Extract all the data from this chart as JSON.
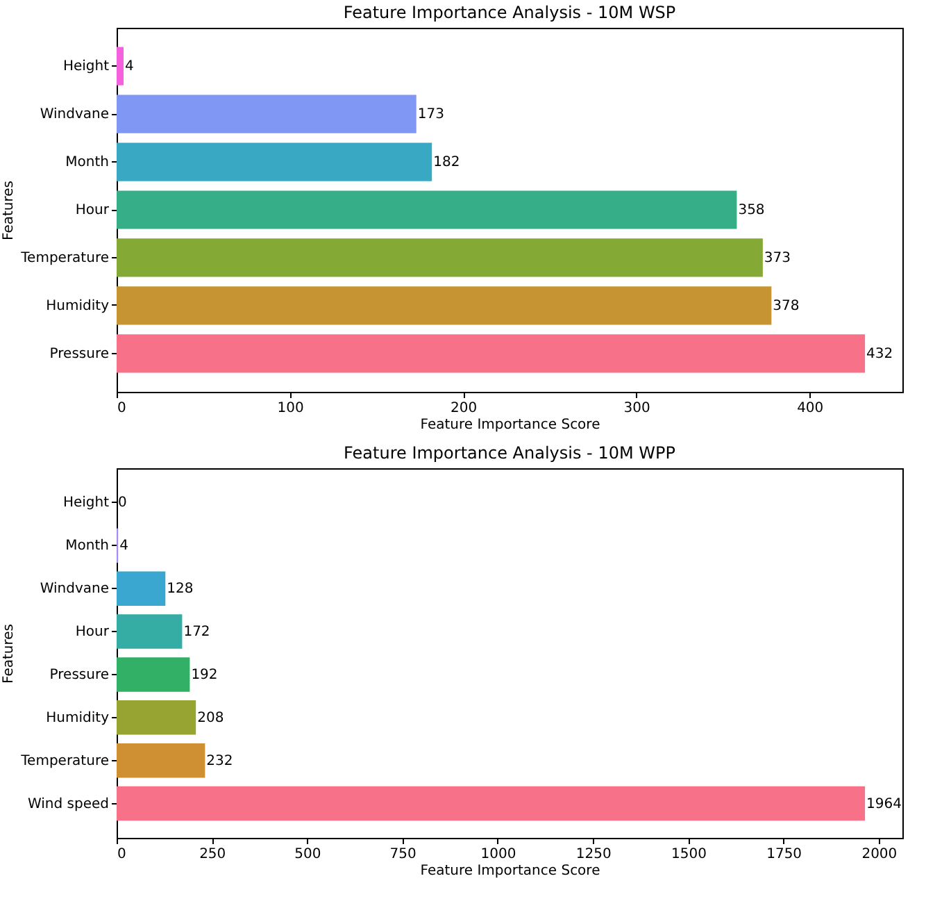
{
  "chart_data": [
    {
      "type": "bar",
      "orientation": "horizontal",
      "title": "Feature Importance Analysis - 10M WSP",
      "xlabel": "Feature Importance Score",
      "ylabel": "Features",
      "categories": [
        "Height",
        "Windvane",
        "Month",
        "Hour",
        "Temperature",
        "Humidity",
        "Pressure"
      ],
      "values": [
        4,
        173,
        182,
        358,
        373,
        378,
        432
      ],
      "colors": [
        "#f561dd",
        "#8197f4",
        "#39a8c2",
        "#36ae87",
        "#84a934",
        "#c69433",
        "#f77189"
      ],
      "xlim": [
        0,
        453.6
      ],
      "xticks": [
        0,
        100,
        200,
        300,
        400
      ],
      "data_labels": true,
      "grid": false,
      "legend": false
    },
    {
      "type": "bar",
      "orientation": "horizontal",
      "title": "Feature Importance Analysis - 10M WPP",
      "xlabel": "Feature Importance Score",
      "ylabel": "Features",
      "categories": [
        "Height",
        "Month",
        "Windvane",
        "Hour",
        "Pressure",
        "Humidity",
        "Temperature",
        "Wind speed"
      ],
      "values": [
        0,
        4,
        128,
        172,
        192,
        208,
        232,
        1964
      ],
      "colors": [
        "#f561dd",
        "#a48cf4",
        "#39a7d0",
        "#36ada4",
        "#32b166",
        "#97a431",
        "#ce9032",
        "#f77189"
      ],
      "xlim": [
        0,
        2062.2
      ],
      "xticks": [
        0,
        250,
        500,
        750,
        1000,
        1250,
        1500,
        1750,
        2000
      ],
      "data_labels": true,
      "grid": false,
      "legend": false
    }
  ]
}
